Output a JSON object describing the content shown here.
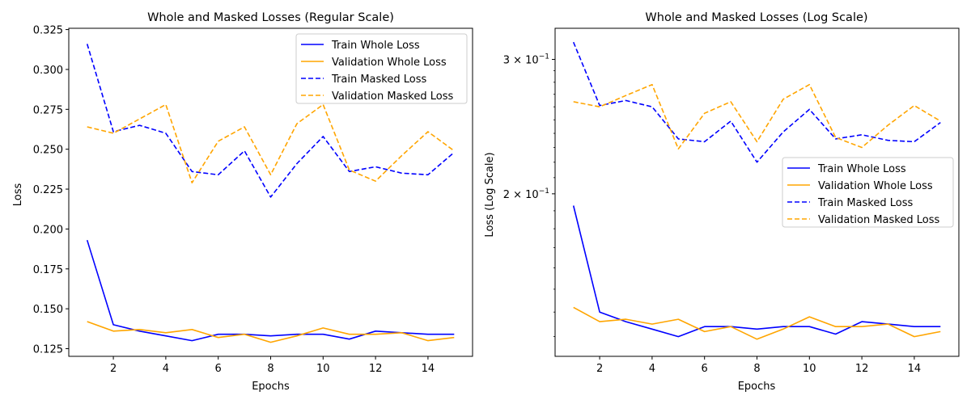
{
  "chart_data": [
    {
      "type": "line",
      "title": "Whole and Masked Losses (Regular Scale)",
      "xlabel": "Epochs",
      "ylabel": "Loss",
      "yscale": "linear",
      "xlim": [
        0.3,
        15.7
      ],
      "ylim": [
        0.1202,
        0.3258
      ],
      "xticks": [
        2,
        4,
        6,
        8,
        10,
        12,
        14
      ],
      "xtick_labels": [
        "2",
        "4",
        "6",
        "8",
        "10",
        "12",
        "14"
      ],
      "yticks": [
        0.125,
        0.15,
        0.175,
        0.2,
        0.225,
        0.25,
        0.275,
        0.3,
        0.325
      ],
      "ytick_labels": [
        "0.125",
        "0.150",
        "0.175",
        "0.200",
        "0.225",
        "0.250",
        "0.275",
        "0.300",
        "0.325"
      ],
      "grid": false,
      "legend_position": "upper right",
      "x": [
        1,
        2,
        3,
        4,
        5,
        6,
        7,
        8,
        9,
        10,
        11,
        12,
        13,
        14,
        15
      ],
      "series": [
        {
          "name": "Train Whole Loss",
          "color": "#0000ff",
          "style": "solid",
          "values": [
            0.193,
            0.14,
            0.136,
            0.133,
            0.13,
            0.134,
            0.134,
            0.133,
            0.134,
            0.134,
            0.131,
            0.136,
            0.135,
            0.134,
            0.134
          ]
        },
        {
          "name": "Validation Whole Loss",
          "color": "#ffa500",
          "style": "solid",
          "values": [
            0.142,
            0.136,
            0.137,
            0.135,
            0.137,
            0.132,
            0.134,
            0.129,
            0.133,
            0.138,
            0.134,
            0.134,
            0.135,
            0.13,
            0.132
          ]
        },
        {
          "name": "Train Masked Loss",
          "color": "#0000ff",
          "style": "dashed",
          "values": [
            0.316,
            0.261,
            0.265,
            0.26,
            0.236,
            0.234,
            0.249,
            0.22,
            0.241,
            0.258,
            0.236,
            0.239,
            0.235,
            0.234,
            0.248
          ]
        },
        {
          "name": "Validation Masked Loss",
          "color": "#ffa500",
          "style": "dashed",
          "values": [
            0.264,
            0.26,
            0.269,
            0.278,
            0.229,
            0.255,
            0.264,
            0.234,
            0.266,
            0.278,
            0.237,
            0.23,
            0.246,
            0.261,
            0.249
          ]
        }
      ]
    },
    {
      "type": "line",
      "title": "Whole and Masked Losses (Log Scale)",
      "xlabel": "Epochs",
      "ylabel": "Loss (Log Scale)",
      "yscale": "log",
      "xlim": [
        0.3,
        15.7
      ],
      "ylim": [
        0.1225,
        0.3295
      ],
      "xticks": [
        2,
        4,
        6,
        8,
        10,
        12,
        14
      ],
      "xtick_labels": [
        "2",
        "4",
        "6",
        "8",
        "10",
        "12",
        "14"
      ],
      "yticks": [
        0.2,
        0.3
      ],
      "ytick_labels": [
        {
          "base": "2 × 10",
          "exp": "−1"
        },
        {
          "base": "3 × 10",
          "exp": "−1"
        }
      ],
      "grid": false,
      "legend_position": "center right",
      "x": [
        1,
        2,
        3,
        4,
        5,
        6,
        7,
        8,
        9,
        10,
        11,
        12,
        13,
        14,
        15
      ],
      "series": [
        {
          "name": "Train Whole Loss",
          "color": "#0000ff",
          "style": "solid",
          "values": [
            0.193,
            0.14,
            0.136,
            0.133,
            0.13,
            0.134,
            0.134,
            0.133,
            0.134,
            0.134,
            0.131,
            0.136,
            0.135,
            0.134,
            0.134
          ]
        },
        {
          "name": "Validation Whole Loss",
          "color": "#ffa500",
          "style": "solid",
          "values": [
            0.142,
            0.136,
            0.137,
            0.135,
            0.137,
            0.132,
            0.134,
            0.129,
            0.133,
            0.138,
            0.134,
            0.134,
            0.135,
            0.13,
            0.132
          ]
        },
        {
          "name": "Train Masked Loss",
          "color": "#0000ff",
          "style": "dashed",
          "values": [
            0.316,
            0.261,
            0.265,
            0.26,
            0.236,
            0.234,
            0.249,
            0.22,
            0.241,
            0.258,
            0.236,
            0.239,
            0.235,
            0.234,
            0.248
          ]
        },
        {
          "name": "Validation Masked Loss",
          "color": "#ffa500",
          "style": "dashed",
          "values": [
            0.264,
            0.26,
            0.269,
            0.278,
            0.229,
            0.255,
            0.264,
            0.234,
            0.266,
            0.278,
            0.237,
            0.23,
            0.246,
            0.261,
            0.249
          ]
        }
      ]
    }
  ]
}
